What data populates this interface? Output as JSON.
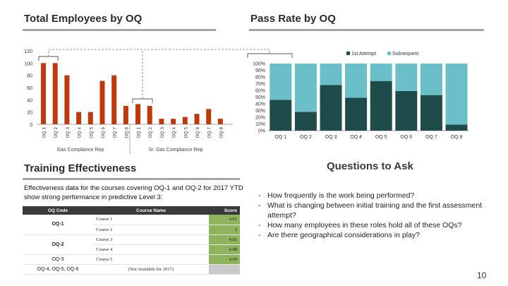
{
  "sections": {
    "employees_title": "Total Employees by OQ",
    "pass_title": "Pass Rate by OQ",
    "training_title": "Training Effectiveness",
    "questions_title": "Questions to Ask"
  },
  "chart_data": [
    {
      "type": "bar",
      "title": "Total Employees by OQ",
      "categories": [
        "OQ 1",
        "OQ 2",
        "OQ 3",
        "OQ 4",
        "OQ 5",
        "OQ 6",
        "OQ 7",
        "OQ 8"
      ],
      "groups": [
        "Gas Compliance Rep",
        "Sr. Gas Compliance Rep"
      ],
      "series": [
        {
          "name": "Gas Compliance Rep",
          "values": [
            100,
            100,
            80,
            20,
            20,
            71,
            80,
            30
          ]
        },
        {
          "name": "Sr. Gas Compliance Rep",
          "values": [
            33,
            30,
            9,
            9,
            12,
            17,
            25,
            9
          ]
        }
      ],
      "yticks": [
        0,
        20,
        40,
        60,
        80,
        100,
        120
      ],
      "ylim": [
        0,
        120
      ],
      "color": "#c0390b"
    },
    {
      "type": "bar",
      "stacked": true,
      "title": "Pass Rate by OQ",
      "categories": [
        "OQ 1",
        "OQ 2",
        "OQ 3",
        "OQ 4",
        "OQ 5",
        "OQ 6",
        "OQ 7",
        "OQ 8"
      ],
      "series": [
        {
          "name": "1st Attempt",
          "color": "#1f4b4b",
          "values": [
            46,
            28,
            68,
            49,
            74,
            59,
            53,
            9
          ]
        },
        {
          "name": "Subsequent",
          "color": "#6abfc8",
          "values": [
            54,
            72,
            32,
            51,
            26,
            41,
            47,
            91
          ]
        }
      ],
      "yticks": [
        "0%",
        "10%",
        "20%",
        "30%",
        "40%",
        "50%",
        "60%",
        "70%",
        "80%",
        "90%",
        "100%"
      ],
      "ylim": [
        0,
        100
      ]
    }
  ],
  "effectiveness": {
    "intro": "Effectiveness data for the courses covering OQ-1 and OQ-2 for 2017 YTD show strong performance in predictive Level 3:",
    "headers": [
      "OQ Code",
      "Course Name",
      "Score"
    ],
    "rows": [
      {
        "oq": "OQ-1",
        "course": "Course 1",
        "score": "4.61"
      },
      {
        "oq": "",
        "course": "Course 2",
        "score": "5"
      },
      {
        "oq": "OQ-2",
        "course": "Course 3",
        "score": "4.81"
      },
      {
        "oq": "",
        "course": "Course 4",
        "score": "4.88"
      },
      {
        "oq": "OQ-3",
        "course": "Course 5",
        "score": "4.69"
      },
      {
        "oq": "OQ-4, OQ-5, OQ-6",
        "course": "(Not Available for 2017)",
        "score": ""
      }
    ]
  },
  "questions": [
    "How frequently is the work being performed?",
    "What is changing between initial training and the first assessment attempt?",
    "How many employees in these roles hold all of these OQs?",
    "Are there geographical considerations in play?"
  ],
  "page_number": "10"
}
